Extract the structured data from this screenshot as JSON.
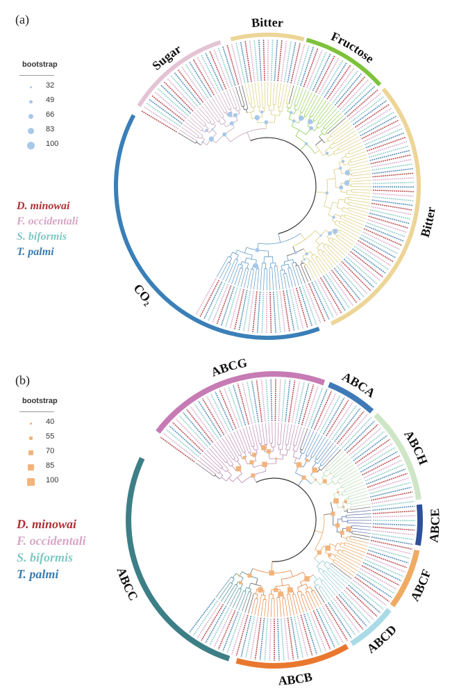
{
  "panel_a": {
    "label": "(a)",
    "legend": {
      "title": "bootstrap",
      "values": [
        "32",
        "49",
        "66",
        "83",
        "100"
      ],
      "color": "#a8c8ea"
    },
    "species": [
      {
        "name": "D. minowai",
        "color": "#b03035"
      },
      {
        "name": "F. occidentali",
        "color": "#d7a6c6"
      },
      {
        "name": "S. biformis",
        "color": "#7fc8c3"
      },
      {
        "name": "T. palmi",
        "color": "#3b7cb0"
      }
    ],
    "clades": [
      {
        "name": "Sugar",
        "color": "#e3c3d4"
      },
      {
        "name": "Bitter",
        "color": "#ecd596"
      },
      {
        "name": "Fructose",
        "color": "#7dc23a"
      },
      {
        "name": "Bitter",
        "color": "#ecd596"
      },
      {
        "name": "CO₂",
        "color": "#3a7fb8"
      }
    ]
  },
  "panel_b": {
    "label": "(b)",
    "legend": {
      "title": "bootstrap",
      "values": [
        "40",
        "55",
        "70",
        "85",
        "100"
      ],
      "color": "#f2b47c"
    },
    "species": [
      {
        "name": "D. minowai",
        "color": "#b03035"
      },
      {
        "name": "F. occidentali",
        "color": "#d7a6c6"
      },
      {
        "name": "S. biformis",
        "color": "#7fc8c3"
      },
      {
        "name": "T. palmi",
        "color": "#3b7cb0"
      }
    ],
    "clades": [
      {
        "name": "ABCG",
        "color": "#c77bb4"
      },
      {
        "name": "ABCA",
        "color": "#3f79b8"
      },
      {
        "name": "ABCH",
        "color": "#cfe6c6"
      },
      {
        "name": "ABCE",
        "color": "#2f4f9a"
      },
      {
        "name": "ABCF",
        "color": "#efaa63"
      },
      {
        "name": "ABCD",
        "color": "#a9dbe7"
      },
      {
        "name": "ABCB",
        "color": "#e9782f"
      },
      {
        "name": "ABCC",
        "color": "#3d7f86"
      }
    ]
  }
}
